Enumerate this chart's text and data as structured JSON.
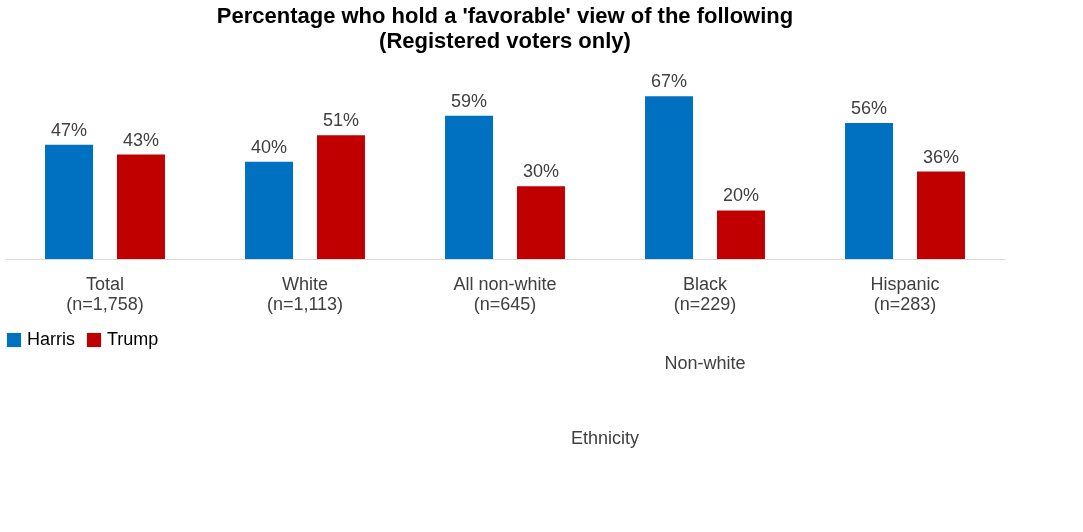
{
  "chart_data": {
    "type": "bar",
    "title": "Percentage who hold a 'favorable' view of the following",
    "subtitle": "(Registered voters only)",
    "categories": [
      "Total\n(n=1,758)",
      "White\n(n=1,113)",
      "All non-white\n(n=645)",
      "Black\n(n=229)",
      "Hispanic\n(n=283)"
    ],
    "series": [
      {
        "name": "Harris",
        "color": "#0070c0",
        "values": [
          47,
          40,
          59,
          67,
          56
        ],
        "value_labels": [
          "47%",
          "40%",
          "59%",
          "67%",
          "56%"
        ]
      },
      {
        "name": "Trump",
        "color": "#c00000",
        "values": [
          43,
          51,
          30,
          20,
          36
        ],
        "value_labels": [
          "43%",
          "51%",
          "30%",
          "20%",
          "36%"
        ]
      }
    ],
    "legend": "bottom",
    "grid": false,
    "annotations": [
      "Non-white",
      "Ethnicity"
    ]
  }
}
